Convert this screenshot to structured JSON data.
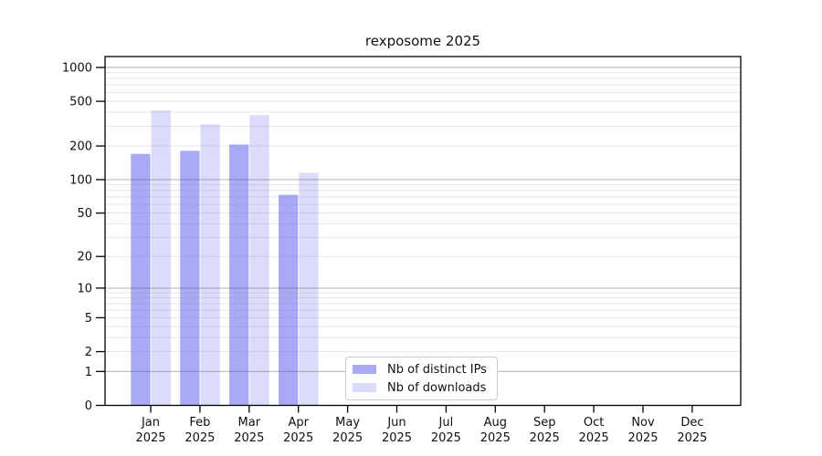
{
  "chart_data": {
    "type": "bar",
    "title": "rexposome 2025",
    "categories": [
      "Jan",
      "Feb",
      "Mar",
      "Apr",
      "May",
      "Jun",
      "Jul",
      "Aug",
      "Sep",
      "Oct",
      "Nov",
      "Dec"
    ],
    "xtick_year": "2025",
    "series": [
      {
        "name": "Nb of distinct IPs",
        "color": "#a9a9f7",
        "values": [
          170,
          181,
          206,
          73,
          0,
          0,
          0,
          0,
          0,
          0,
          0,
          0
        ]
      },
      {
        "name": "Nb of downloads",
        "color": "#dbdbfa",
        "values": [
          415,
          312,
          377,
          115,
          0,
          0,
          0,
          0,
          0,
          0,
          0,
          0
        ]
      }
    ],
    "yticks": [
      0,
      1,
      2,
      5,
      10,
      20,
      50,
      100,
      200,
      500,
      1000
    ],
    "scale": "log1p",
    "ylim": [
      0,
      1250
    ],
    "grid": "on",
    "legend_position": "lower-center",
    "colors": {
      "major_grid": "#b9b9b9",
      "minor_grid": "#e9e9e9",
      "axis": "#000000",
      "background": "#ffffff"
    }
  }
}
